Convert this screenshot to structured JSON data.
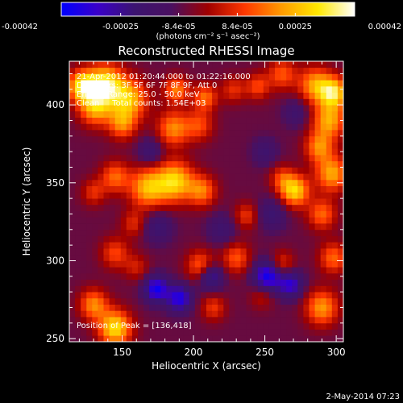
{
  "chart_data": {
    "type": "heatmap",
    "title": "Reconstructed RHESSI Image",
    "xlabel": "Heliocentric X (arcsec)",
    "ylabel": "Heliocentric Y (arcsec)",
    "xlim": [
      113,
      305
    ],
    "ylim": [
      248,
      428
    ],
    "x_ticks": [
      150,
      200,
      250,
      300
    ],
    "y_ticks": [
      250,
      300,
      350,
      400
    ],
    "colorbar": {
      "vmin": -0.00042,
      "vmax": 0.00042,
      "tick_values": [
        -0.00042,
        -0.00025,
        -8.4e-05,
        8.4e-05,
        0.00025,
        0.00042
      ],
      "tick_labels": [
        "-0.00042",
        "-0.00025",
        "-8.4e-05",
        "8.4e-05",
        "0.00025",
        "0.00042"
      ],
      "unit_label": "(photons cm⁻² s⁻¹ asec⁻²)",
      "colormap": [
        "#0000ff",
        "#3a00c8",
        "#3c1470",
        "#4a1060",
        "#a00000",
        "#ff3800",
        "#ff9a00",
        "#ffe800",
        "#ffffff"
      ]
    },
    "annotations": [
      "21-Apr-2012 01:20:44.000 to 01:22:16.000",
      "Detectors: 3F 5F 6F 7F 8F 9F, Att 0",
      "Energy Range: 25.0 - 50.0 keV",
      "Clean     Total counts: 1.54E+03"
    ],
    "peak": {
      "x": 136,
      "y": 418
    },
    "peak_label": "Position of Peak = [136,418]",
    "grid": false,
    "peaks": [
      {
        "x": 122,
        "y": 412,
        "v": 0.00038,
        "r": 7
      },
      {
        "x": 138,
        "y": 413,
        "v": 0.00042,
        "r": 9
      },
      {
        "x": 155,
        "y": 404,
        "v": 0.00032,
        "r": 9
      },
      {
        "x": 131,
        "y": 398,
        "v": 0.00028,
        "r": 8
      },
      {
        "x": 150,
        "y": 388,
        "v": 0.00024,
        "r": 7
      },
      {
        "x": 186,
        "y": 385,
        "v": 0.00026,
        "r": 8
      },
      {
        "x": 204,
        "y": 387,
        "v": 0.00018,
        "r": 7
      },
      {
        "x": 188,
        "y": 410,
        "v": 0.00025,
        "r": 6
      },
      {
        "x": 208,
        "y": 405,
        "v": 0.00023,
        "r": 6
      },
      {
        "x": 228,
        "y": 410,
        "v": 0.00015,
        "r": 6
      },
      {
        "x": 245,
        "y": 412,
        "v": 0.00018,
        "r": 6
      },
      {
        "x": 262,
        "y": 420,
        "v": 0.0002,
        "r": 7
      },
      {
        "x": 285,
        "y": 413,
        "v": 0.00028,
        "r": 8
      },
      {
        "x": 298,
        "y": 408,
        "v": 0.00038,
        "r": 7
      },
      {
        "x": 295,
        "y": 390,
        "v": 0.0003,
        "r": 8
      },
      {
        "x": 288,
        "y": 373,
        "v": 0.00025,
        "r": 7
      },
      {
        "x": 297,
        "y": 356,
        "v": 0.0003,
        "r": 8
      },
      {
        "x": 271,
        "y": 345,
        "v": 0.00036,
        "r": 7
      },
      {
        "x": 290,
        "y": 330,
        "v": 0.00022,
        "r": 7
      },
      {
        "x": 262,
        "y": 353,
        "v": 0.00016,
        "r": 6
      },
      {
        "x": 168,
        "y": 347,
        "v": 0.00032,
        "r": 9
      },
      {
        "x": 187,
        "y": 351,
        "v": 0.00036,
        "r": 9
      },
      {
        "x": 206,
        "y": 345,
        "v": 0.00024,
        "r": 7
      },
      {
        "x": 145,
        "y": 354,
        "v": 0.00022,
        "r": 7
      },
      {
        "x": 130,
        "y": 344,
        "v": 0.00015,
        "r": 6
      },
      {
        "x": 158,
        "y": 324,
        "v": 0.00014,
        "r": 6
      },
      {
        "x": 145,
        "y": 305,
        "v": 0.00018,
        "r": 7
      },
      {
        "x": 160,
        "y": 296,
        "v": 0.00012,
        "r": 6
      },
      {
        "x": 205,
        "y": 297,
        "v": 0.00022,
        "r": 7
      },
      {
        "x": 230,
        "y": 302,
        "v": 0.0002,
        "r": 7
      },
      {
        "x": 237,
        "y": 329,
        "v": 0.00016,
        "r": 6
      },
      {
        "x": 262,
        "y": 298,
        "v": 0.00017,
        "r": 6
      },
      {
        "x": 298,
        "y": 302,
        "v": 0.00022,
        "r": 7
      },
      {
        "x": 290,
        "y": 270,
        "v": 0.00028,
        "r": 8
      },
      {
        "x": 145,
        "y": 257,
        "v": 0.00038,
        "r": 8
      },
      {
        "x": 130,
        "y": 272,
        "v": 0.00026,
        "r": 7
      },
      {
        "x": 214,
        "y": 270,
        "v": 0.00016,
        "r": 6
      },
      {
        "x": 248,
        "y": 278,
        "v": 0.00012,
        "r": 6
      },
      {
        "x": 174,
        "y": 282,
        "v": -0.00032,
        "r": 6
      },
      {
        "x": 190,
        "y": 276,
        "v": -0.0003,
        "r": 6
      },
      {
        "x": 212,
        "y": 290,
        "v": -0.00024,
        "r": 6
      },
      {
        "x": 252,
        "y": 290,
        "v": -0.00034,
        "r": 7
      },
      {
        "x": 268,
        "y": 285,
        "v": -0.00026,
        "r": 6
      },
      {
        "x": 175,
        "y": 322,
        "v": -0.00014,
        "r": 7
      },
      {
        "x": 220,
        "y": 320,
        "v": -0.00012,
        "r": 7
      },
      {
        "x": 255,
        "y": 330,
        "v": -0.00014,
        "r": 7
      },
      {
        "x": 250,
        "y": 370,
        "v": -0.00012,
        "r": 6
      },
      {
        "x": 170,
        "y": 370,
        "v": -0.00014,
        "r": 6
      },
      {
        "x": 272,
        "y": 395,
        "v": -0.00012,
        "r": 6
      }
    ],
    "background_level": -7e-05
  },
  "footer": {
    "timestamp": "2-May-2014 07:23"
  }
}
